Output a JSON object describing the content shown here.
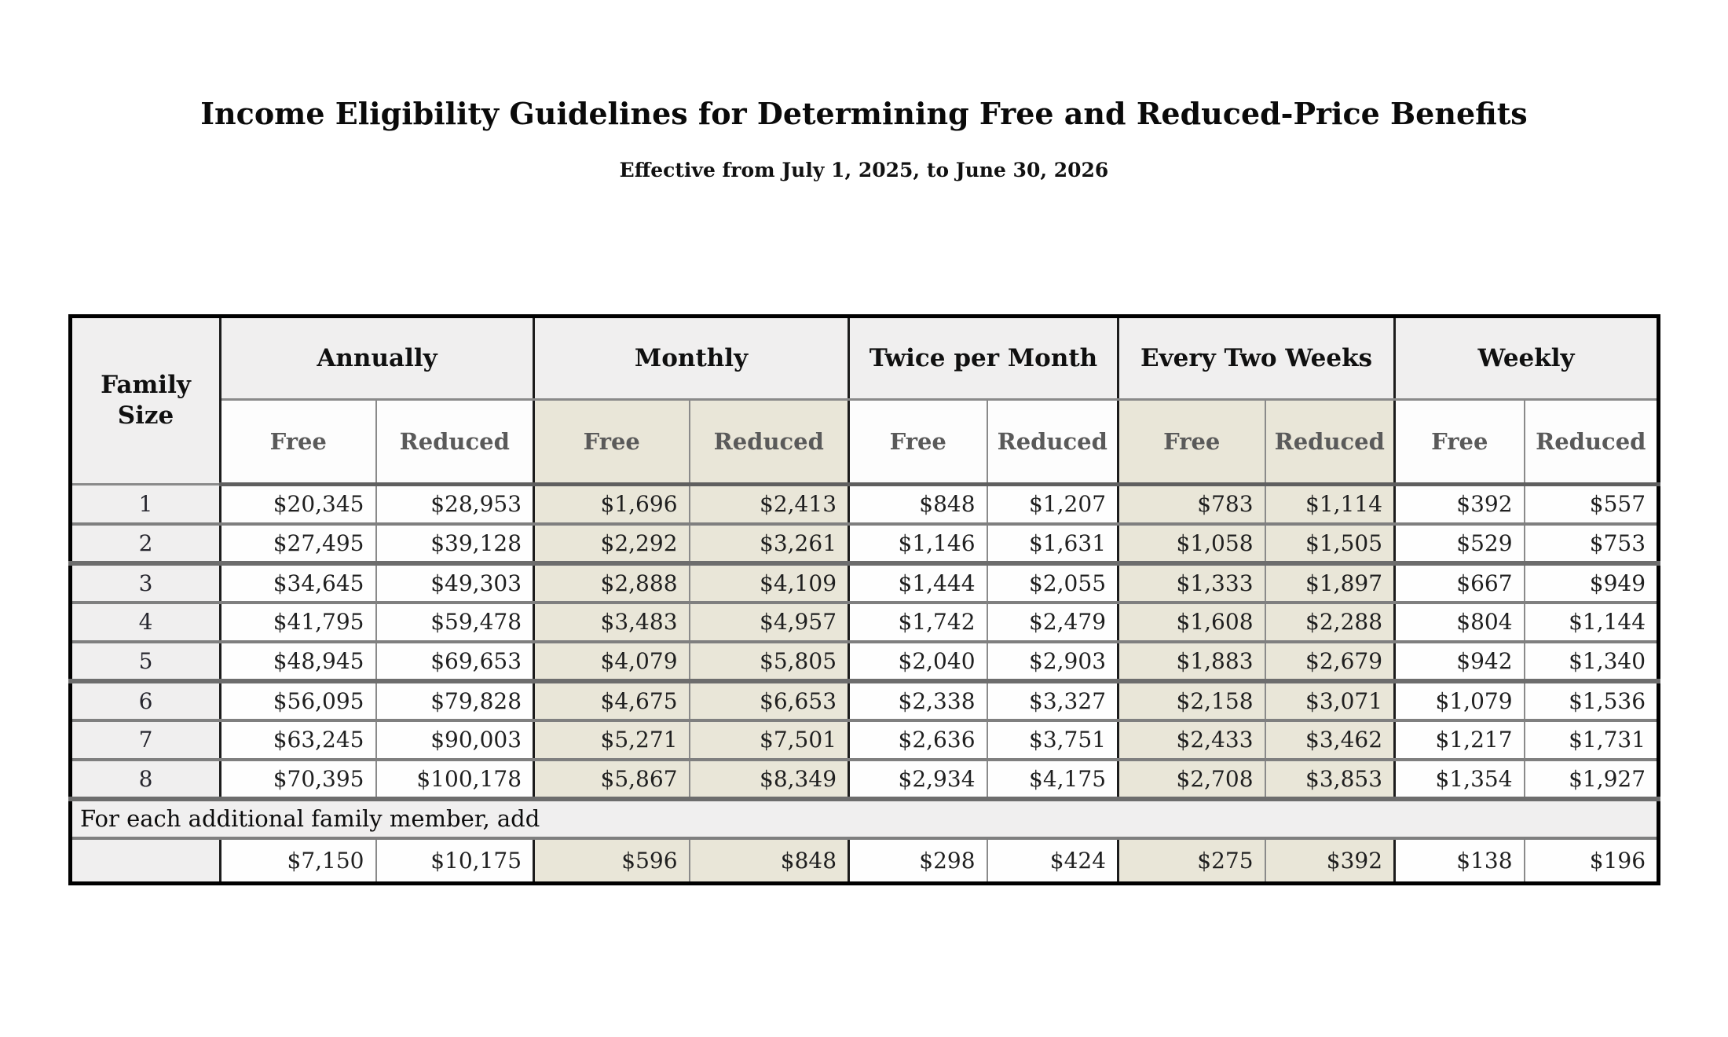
{
  "page": {
    "title": "Income Eligibility Guidelines for Determining Free and Reduced-Price Benefits",
    "subtitle": "Effective from July 1, 2025, to June 30, 2026"
  },
  "table": {
    "corner_header": "Family Size",
    "groups": [
      {
        "label": "Annually",
        "shaded": false
      },
      {
        "label": "Monthly",
        "shaded": true
      },
      {
        "label": "Twice per Month",
        "shaded": false
      },
      {
        "label": "Every Two Weeks",
        "shaded": true
      },
      {
        "label": "Weekly",
        "shaded": false
      }
    ],
    "sub_headers": [
      "Free",
      "Reduced"
    ],
    "rows": [
      {
        "family_size": "1",
        "values": [
          "$20,345",
          "$28,953",
          "$1,696",
          "$2,413",
          "$848",
          "$1,207",
          "$783",
          "$1,114",
          "$392",
          "$557"
        ]
      },
      {
        "family_size": "2",
        "values": [
          "$27,495",
          "$39,128",
          "$2,292",
          "$3,261",
          "$1,146",
          "$1,631",
          "$1,058",
          "$1,505",
          "$529",
          "$753"
        ]
      },
      {
        "family_size": "3",
        "values": [
          "$34,645",
          "$49,303",
          "$2,888",
          "$4,109",
          "$1,444",
          "$2,055",
          "$1,333",
          "$1,897",
          "$667",
          "$949"
        ]
      },
      {
        "family_size": "4",
        "values": [
          "$41,795",
          "$59,478",
          "$3,483",
          "$4,957",
          "$1,742",
          "$2,479",
          "$1,608",
          "$2,288",
          "$804",
          "$1,144"
        ]
      },
      {
        "family_size": "5",
        "values": [
          "$48,945",
          "$69,653",
          "$4,079",
          "$5,805",
          "$2,040",
          "$2,903",
          "$1,883",
          "$2,679",
          "$942",
          "$1,340"
        ]
      },
      {
        "family_size": "6",
        "values": [
          "$56,095",
          "$79,828",
          "$4,675",
          "$6,653",
          "$2,338",
          "$3,327",
          "$2,158",
          "$3,071",
          "$1,079",
          "$1,536"
        ]
      },
      {
        "family_size": "7",
        "values": [
          "$63,245",
          "$90,003",
          "$5,271",
          "$7,501",
          "$2,636",
          "$3,751",
          "$2,433",
          "$3,462",
          "$1,217",
          "$1,731"
        ]
      },
      {
        "family_size": "8",
        "values": [
          "$70,395",
          "$100,178",
          "$5,867",
          "$8,349",
          "$2,934",
          "$4,175",
          "$2,708",
          "$3,853",
          "$1,354",
          "$1,927"
        ]
      }
    ],
    "additional_label": "For each additional family member, add",
    "additional_row": {
      "family_size": "",
      "values": [
        "$7,150",
        "$10,175",
        "$596",
        "$848",
        "$298",
        "$424",
        "$275",
        "$392",
        "$138",
        "$196"
      ]
    }
  },
  "colors": {
    "shaded_column": "#e9e6d8",
    "header_gray": "#f0efef",
    "row_border": "#7f7f7f",
    "frame": "#000000",
    "subheader_text": "#5a5a5a"
  }
}
